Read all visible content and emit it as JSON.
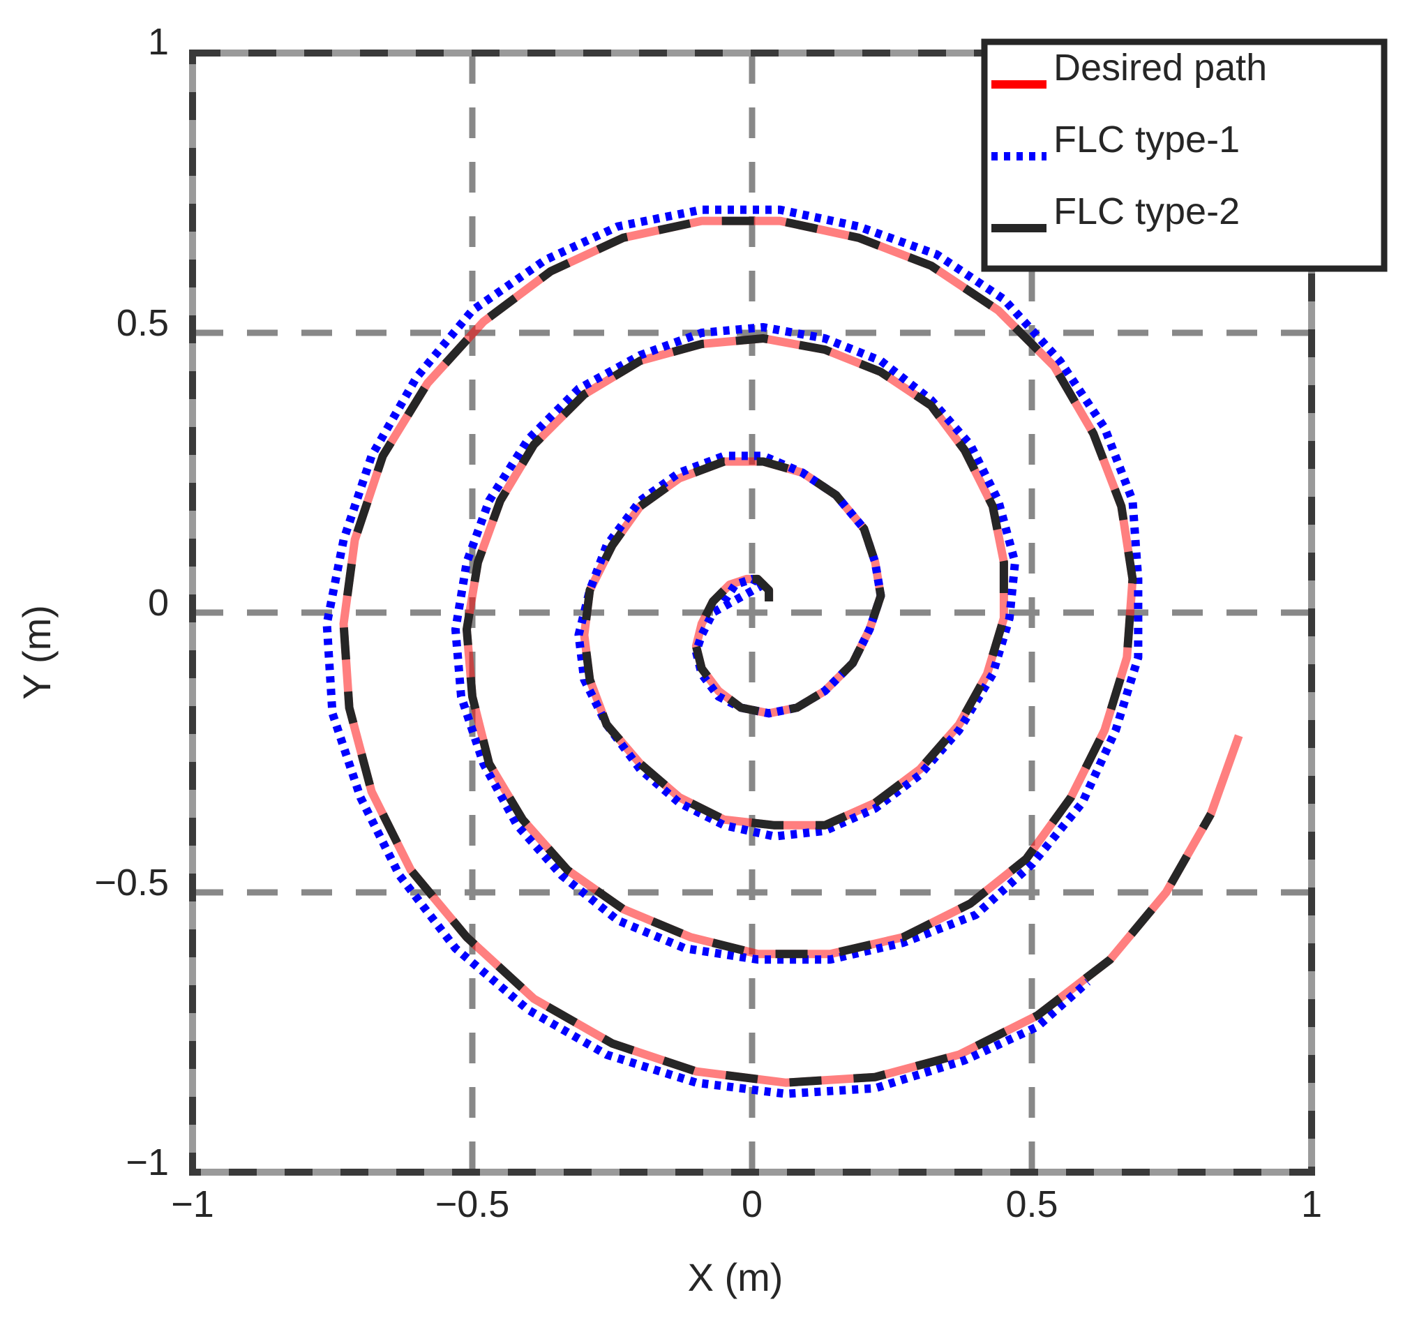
{
  "chart_data": {
    "type": "line",
    "title": "",
    "xlabel": "X (m)",
    "ylabel": "Y (m)",
    "xlim": [
      -1,
      1
    ],
    "ylim": [
      -1,
      1
    ],
    "xticks": [
      -1,
      -0.5,
      0,
      0.5,
      1
    ],
    "yticks": [
      -1,
      -0.5,
      0,
      0.5,
      1
    ],
    "xtick_labels": [
      "−1",
      "−0.5",
      "0",
      "0.5",
      "1"
    ],
    "ytick_labels": [
      "−1",
      "−0.5",
      "0",
      "0.5",
      "1"
    ],
    "grid": true,
    "grid_style": "dashed",
    "legend_position": "top-right",
    "series": [
      {
        "name": "Desired path",
        "color": "#ff0000",
        "style": "solid",
        "points": [
          [
            0.03,
            0.02
          ],
          [
            0.03,
            0.04
          ],
          [
            0.01,
            0.06
          ],
          [
            -0.01,
            0.06
          ],
          [
            -0.04,
            0.05
          ],
          [
            -0.07,
            0.02
          ],
          [
            -0.09,
            -0.02
          ],
          [
            -0.1,
            -0.06
          ],
          [
            -0.09,
            -0.1
          ],
          [
            -0.06,
            -0.14
          ],
          [
            -0.02,
            -0.17
          ],
          [
            0.03,
            -0.18
          ],
          [
            0.08,
            -0.17
          ],
          [
            0.13,
            -0.14
          ],
          [
            0.18,
            -0.09
          ],
          [
            0.21,
            -0.03
          ],
          [
            0.23,
            0.03
          ],
          [
            0.22,
            0.09
          ],
          [
            0.2,
            0.15
          ],
          [
            0.15,
            0.21
          ],
          [
            0.09,
            0.25
          ],
          [
            0.02,
            0.27
          ],
          [
            -0.05,
            0.27
          ],
          [
            -0.13,
            0.24
          ],
          [
            -0.2,
            0.19
          ],
          [
            -0.25,
            0.12
          ],
          [
            -0.29,
            0.04
          ],
          [
            -0.3,
            -0.04
          ],
          [
            -0.29,
            -0.12
          ],
          [
            -0.26,
            -0.2
          ],
          [
            -0.2,
            -0.27
          ],
          [
            -0.13,
            -0.33
          ],
          [
            -0.05,
            -0.37
          ],
          [
            0.04,
            -0.38
          ],
          [
            0.13,
            -0.38
          ],
          [
            0.22,
            -0.34
          ],
          [
            0.3,
            -0.28
          ],
          [
            0.37,
            -0.2
          ],
          [
            0.42,
            -0.11
          ],
          [
            0.45,
            -0.01
          ],
          [
            0.45,
            0.09
          ],
          [
            0.43,
            0.19
          ],
          [
            0.38,
            0.29
          ],
          [
            0.32,
            0.37
          ],
          [
            0.23,
            0.43
          ],
          [
            0.13,
            0.47
          ],
          [
            0.02,
            0.49
          ],
          [
            -0.09,
            0.48
          ],
          [
            -0.2,
            0.45
          ],
          [
            -0.3,
            0.39
          ],
          [
            -0.39,
            0.3
          ],
          [
            -0.45,
            0.2
          ],
          [
            -0.49,
            0.09
          ],
          [
            -0.51,
            -0.03
          ],
          [
            -0.5,
            -0.15
          ],
          [
            -0.47,
            -0.27
          ],
          [
            -0.41,
            -0.37
          ],
          [
            -0.33,
            -0.46
          ],
          [
            -0.23,
            -0.53
          ],
          [
            -0.11,
            -0.58
          ],
          [
            0.01,
            -0.61
          ],
          [
            0.14,
            -0.61
          ],
          [
            0.27,
            -0.58
          ],
          [
            0.39,
            -0.52
          ],
          [
            0.49,
            -0.44
          ],
          [
            0.57,
            -0.33
          ],
          [
            0.63,
            -0.21
          ],
          [
            0.67,
            -0.08
          ],
          [
            0.68,
            0.06
          ],
          [
            0.66,
            0.19
          ],
          [
            0.61,
            0.32
          ],
          [
            0.54,
            0.44
          ],
          [
            0.44,
            0.54
          ],
          [
            0.32,
            0.62
          ],
          [
            0.19,
            0.67
          ],
          [
            0.05,
            0.7
          ],
          [
            -0.09,
            0.7
          ],
          [
            -0.23,
            0.67
          ],
          [
            -0.36,
            0.61
          ],
          [
            -0.48,
            0.52
          ],
          [
            -0.58,
            0.41
          ],
          [
            -0.66,
            0.28
          ],
          [
            -0.71,
            0.13
          ],
          [
            -0.73,
            -0.02
          ],
          [
            -0.72,
            -0.17
          ],
          [
            -0.68,
            -0.32
          ],
          [
            -0.61,
            -0.46
          ],
          [
            -0.51,
            -0.58
          ],
          [
            -0.39,
            -0.69
          ],
          [
            -0.25,
            -0.77
          ],
          [
            -0.1,
            -0.82
          ],
          [
            0.06,
            -0.84
          ],
          [
            0.22,
            -0.83
          ],
          [
            0.37,
            -0.79
          ],
          [
            0.51,
            -0.72
          ],
          [
            0.64,
            -0.62
          ],
          [
            0.74,
            -0.5
          ],
          [
            0.82,
            -0.36
          ],
          [
            0.87,
            -0.22
          ]
        ]
      },
      {
        "name": "FLC type-1",
        "color": "#0000ff",
        "style": "dotted",
        "points": [
          [
            -0.05,
            0.02
          ],
          [
            -0.03,
            0.05
          ],
          [
            0.0,
            0.06
          ],
          [
            0.02,
            0.05
          ],
          [
            -0.07,
            0.0
          ],
          [
            -0.09,
            -0.04
          ],
          [
            -0.1,
            -0.07
          ],
          [
            -0.09,
            -0.11
          ],
          [
            -0.06,
            -0.15
          ],
          [
            -0.02,
            -0.17
          ],
          [
            0.03,
            -0.18
          ],
          [
            0.08,
            -0.17
          ],
          [
            0.13,
            -0.14
          ],
          [
            0.18,
            -0.09
          ],
          [
            0.21,
            -0.03
          ],
          [
            0.23,
            0.03
          ],
          [
            0.22,
            0.09
          ],
          [
            0.2,
            0.15
          ],
          [
            0.15,
            0.21
          ],
          [
            0.09,
            0.25
          ],
          [
            0.02,
            0.28
          ],
          [
            -0.05,
            0.28
          ],
          [
            -0.13,
            0.25
          ],
          [
            -0.2,
            0.2
          ],
          [
            -0.26,
            0.12
          ],
          [
            -0.29,
            0.04
          ],
          [
            -0.31,
            -0.04
          ],
          [
            -0.3,
            -0.12
          ],
          [
            -0.26,
            -0.2
          ],
          [
            -0.2,
            -0.28
          ],
          [
            -0.13,
            -0.34
          ],
          [
            -0.05,
            -0.38
          ],
          [
            0.04,
            -0.4
          ],
          [
            0.13,
            -0.39
          ],
          [
            0.22,
            -0.35
          ],
          [
            0.3,
            -0.29
          ],
          [
            0.37,
            -0.21
          ],
          [
            0.43,
            -0.11
          ],
          [
            0.46,
            -0.01
          ],
          [
            0.47,
            0.09
          ],
          [
            0.44,
            0.2
          ],
          [
            0.39,
            0.3
          ],
          [
            0.32,
            0.38
          ],
          [
            0.23,
            0.45
          ],
          [
            0.13,
            0.49
          ],
          [
            0.02,
            0.51
          ],
          [
            -0.09,
            0.5
          ],
          [
            -0.2,
            0.46
          ],
          [
            -0.31,
            0.4
          ],
          [
            -0.4,
            0.31
          ],
          [
            -0.47,
            0.2
          ],
          [
            -0.51,
            0.09
          ],
          [
            -0.53,
            -0.03
          ],
          [
            -0.52,
            -0.15
          ],
          [
            -0.48,
            -0.27
          ],
          [
            -0.42,
            -0.38
          ],
          [
            -0.34,
            -0.47
          ],
          [
            -0.24,
            -0.55
          ],
          [
            -0.12,
            -0.6
          ],
          [
            0.01,
            -0.62
          ],
          [
            0.14,
            -0.62
          ],
          [
            0.27,
            -0.59
          ],
          [
            0.4,
            -0.54
          ],
          [
            0.5,
            -0.45
          ],
          [
            0.59,
            -0.34
          ],
          [
            0.65,
            -0.21
          ],
          [
            0.69,
            -0.08
          ],
          [
            0.69,
            0.06
          ],
          [
            0.68,
            0.2
          ],
          [
            0.63,
            0.33
          ],
          [
            0.55,
            0.45
          ],
          [
            0.45,
            0.56
          ],
          [
            0.33,
            0.64
          ],
          [
            0.19,
            0.69
          ],
          [
            0.05,
            0.72
          ],
          [
            -0.09,
            0.72
          ],
          [
            -0.24,
            0.69
          ],
          [
            -0.37,
            0.63
          ],
          [
            -0.5,
            0.54
          ],
          [
            -0.6,
            0.42
          ],
          [
            -0.68,
            0.28
          ],
          [
            -0.73,
            0.13
          ],
          [
            -0.76,
            -0.02
          ],
          [
            -0.75,
            -0.18
          ],
          [
            -0.7,
            -0.33
          ],
          [
            -0.63,
            -0.47
          ],
          [
            -0.53,
            -0.6
          ],
          [
            -0.4,
            -0.71
          ],
          [
            -0.26,
            -0.79
          ],
          [
            -0.1,
            -0.84
          ],
          [
            0.06,
            -0.86
          ],
          [
            0.22,
            -0.85
          ],
          [
            0.38,
            -0.8
          ],
          [
            0.51,
            -0.74
          ],
          [
            0.6,
            -0.66
          ]
        ]
      },
      {
        "name": "FLC type-2",
        "color": "#262626",
        "style": "dashed",
        "points": [
          [
            0.03,
            0.02
          ],
          [
            0.03,
            0.04
          ],
          [
            0.01,
            0.06
          ],
          [
            -0.01,
            0.06
          ],
          [
            -0.04,
            0.05
          ],
          [
            -0.07,
            0.02
          ],
          [
            -0.09,
            -0.02
          ],
          [
            -0.1,
            -0.06
          ],
          [
            -0.09,
            -0.1
          ],
          [
            -0.06,
            -0.14
          ],
          [
            -0.02,
            -0.17
          ],
          [
            0.03,
            -0.18
          ],
          [
            0.08,
            -0.17
          ],
          [
            0.13,
            -0.14
          ],
          [
            0.18,
            -0.09
          ],
          [
            0.21,
            -0.03
          ],
          [
            0.23,
            0.03
          ],
          [
            0.22,
            0.09
          ],
          [
            0.2,
            0.15
          ],
          [
            0.15,
            0.21
          ],
          [
            0.09,
            0.25
          ],
          [
            0.02,
            0.27
          ],
          [
            -0.05,
            0.27
          ],
          [
            -0.13,
            0.24
          ],
          [
            -0.2,
            0.19
          ],
          [
            -0.25,
            0.12
          ],
          [
            -0.29,
            0.04
          ],
          [
            -0.3,
            -0.04
          ],
          [
            -0.29,
            -0.12
          ],
          [
            -0.26,
            -0.2
          ],
          [
            -0.2,
            -0.27
          ],
          [
            -0.13,
            -0.33
          ],
          [
            -0.05,
            -0.37
          ],
          [
            0.04,
            -0.38
          ],
          [
            0.13,
            -0.38
          ],
          [
            0.22,
            -0.34
          ],
          [
            0.3,
            -0.28
          ],
          [
            0.37,
            -0.2
          ],
          [
            0.42,
            -0.11
          ],
          [
            0.45,
            -0.01
          ],
          [
            0.45,
            0.09
          ],
          [
            0.43,
            0.19
          ],
          [
            0.38,
            0.29
          ],
          [
            0.32,
            0.37
          ],
          [
            0.23,
            0.43
          ],
          [
            0.13,
            0.47
          ],
          [
            0.02,
            0.49
          ],
          [
            -0.09,
            0.48
          ],
          [
            -0.2,
            0.45
          ],
          [
            -0.3,
            0.39
          ],
          [
            -0.39,
            0.3
          ],
          [
            -0.45,
            0.2
          ],
          [
            -0.49,
            0.09
          ],
          [
            -0.51,
            -0.03
          ],
          [
            -0.5,
            -0.15
          ],
          [
            -0.47,
            -0.27
          ],
          [
            -0.41,
            -0.37
          ],
          [
            -0.33,
            -0.46
          ],
          [
            -0.23,
            -0.53
          ],
          [
            -0.11,
            -0.58
          ],
          [
            0.01,
            -0.61
          ],
          [
            0.14,
            -0.61
          ],
          [
            0.27,
            -0.58
          ],
          [
            0.39,
            -0.52
          ],
          [
            0.49,
            -0.44
          ],
          [
            0.57,
            -0.33
          ],
          [
            0.63,
            -0.21
          ],
          [
            0.67,
            -0.08
          ],
          [
            0.68,
            0.06
          ],
          [
            0.66,
            0.19
          ],
          [
            0.61,
            0.32
          ],
          [
            0.54,
            0.44
          ],
          [
            0.44,
            0.54
          ],
          [
            0.32,
            0.62
          ],
          [
            0.19,
            0.67
          ],
          [
            0.05,
            0.7
          ],
          [
            -0.09,
            0.7
          ],
          [
            -0.23,
            0.67
          ],
          [
            -0.36,
            0.61
          ],
          [
            -0.48,
            0.52
          ],
          [
            -0.58,
            0.41
          ],
          [
            -0.66,
            0.28
          ],
          [
            -0.71,
            0.13
          ],
          [
            -0.73,
            -0.02
          ],
          [
            -0.72,
            -0.17
          ],
          [
            -0.68,
            -0.32
          ],
          [
            -0.61,
            -0.46
          ],
          [
            -0.51,
            -0.58
          ],
          [
            -0.39,
            -0.69
          ],
          [
            -0.25,
            -0.77
          ],
          [
            -0.1,
            -0.82
          ],
          [
            0.06,
            -0.84
          ],
          [
            0.22,
            -0.83
          ],
          [
            0.37,
            -0.79
          ],
          [
            0.51,
            -0.72
          ],
          [
            0.64,
            -0.62
          ],
          [
            0.74,
            -0.5
          ],
          [
            0.82,
            -0.36
          ]
        ]
      }
    ]
  }
}
